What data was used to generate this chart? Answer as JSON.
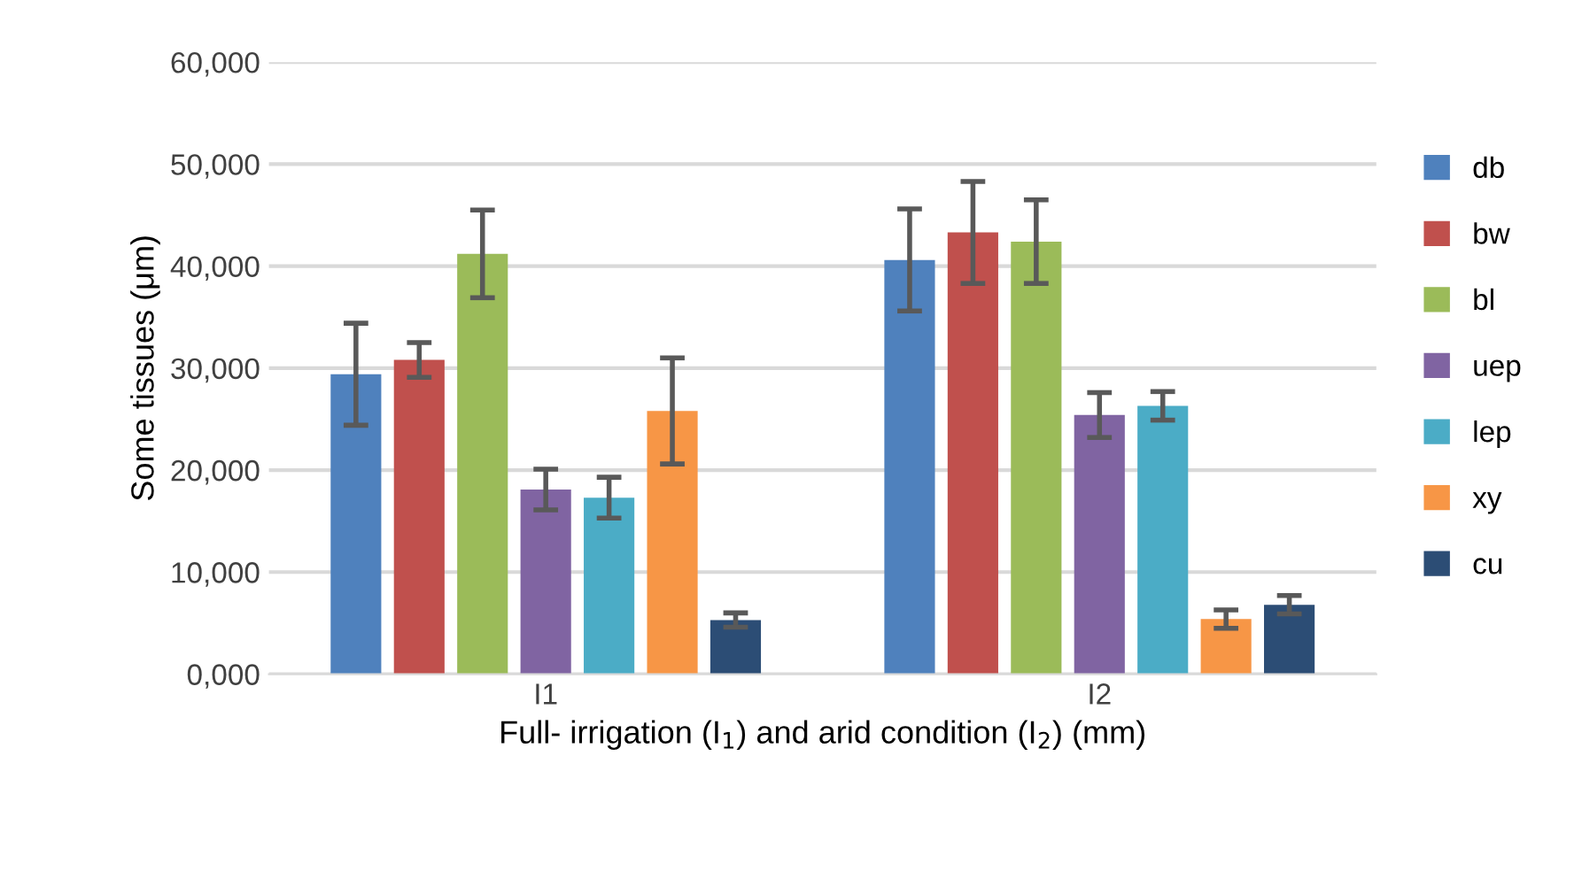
{
  "chart_data": {
    "type": "bar",
    "categories": [
      "I1",
      "I2"
    ],
    "xlabel": "Full- irrigation (I$_{1}$) and arid condition (I$_{2}$) (mm)",
    "ylabel": "Some tissues (μm)",
    "series": [
      {
        "name": "db",
        "color": "#4f81bd",
        "values": [
          29400,
          40600
        ],
        "errors": [
          5000,
          5000
        ]
      },
      {
        "name": "bw",
        "color": "#c0504d",
        "values": [
          30800,
          43300
        ],
        "errors": [
          1700,
          5000
        ]
      },
      {
        "name": "bl",
        "color": "#9bbb59",
        "values": [
          41200,
          42400
        ],
        "errors": [
          4300,
          4100
        ]
      },
      {
        "name": "uep",
        "color": "#8064a2",
        "values": [
          18100,
          25400
        ],
        "errors": [
          2000,
          2200
        ]
      },
      {
        "name": "lep",
        "color": "#4bacc6",
        "values": [
          17300,
          26300
        ],
        "errors": [
          2000,
          1400
        ]
      },
      {
        "name": "xy",
        "color": "#f79646",
        "values": [
          25800,
          5400
        ],
        "errors": [
          5200,
          900
        ]
      },
      {
        "name": "cu",
        "color": "#2c4d75",
        "values": [
          5300,
          6800
        ],
        "errors": [
          700,
          900
        ]
      }
    ],
    "ylim": [
      0,
      60000
    ],
    "yticks": [
      {
        "value": 0,
        "label": "0,000"
      },
      {
        "value": 10000,
        "label": "10,000"
      },
      {
        "value": 20000,
        "label": "20,000"
      },
      {
        "value": 30000,
        "label": "30,000"
      },
      {
        "value": 40000,
        "label": "40,000"
      },
      {
        "value": 50000,
        "label": "50,000"
      },
      {
        "value": 60000,
        "label": "60,000"
      }
    ],
    "grid": "y",
    "legend": "right"
  }
}
